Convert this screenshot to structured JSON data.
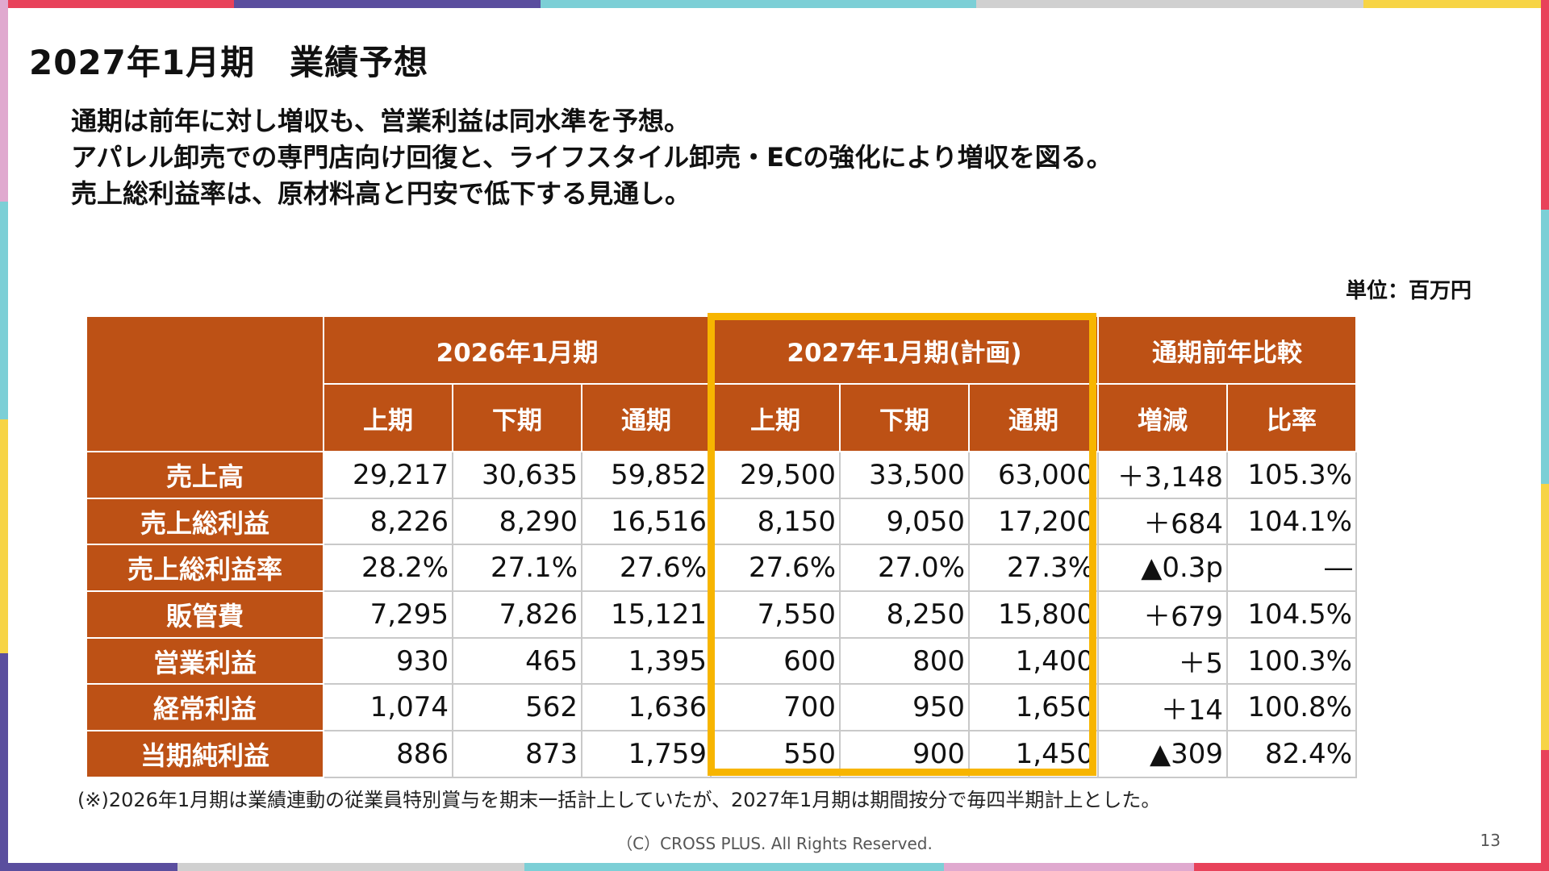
{
  "slide": {
    "title": "2027年1月期　業績予想",
    "summary": [
      "通期は前年に対し増収も、営業利益は同水準を予想。",
      "アパレル卸売での専門店向け回復と、ライフスタイル卸売・ECの強化により増収を図る。",
      "売上総利益率は、原材料高と円安で低下する見通し。"
    ],
    "unit": "単位：百万円",
    "note": "(※)2026年1月期は業績連動の従業員特別賞与を期末一括計上していたが、2027年1月期は期間按分で毎四半期計上とした。",
    "copyright": "（C）CROSS PLUS. All Rights Reserved.",
    "page_number": "13"
  },
  "colors": {
    "header_bg": "#bd5115",
    "highlight_border": "#f7b500",
    "grid": "#c9c9c9",
    "frame": [
      "#e8425a",
      "#5a4e9e",
      "#7ccfd6",
      "#f7d445",
      "#e0a9cf",
      "#d0d0d0"
    ]
  },
  "table": {
    "groups": [
      "2026年1月期",
      "2027年1月期(計画)",
      "通期前年比較"
    ],
    "subheaders": [
      "上期",
      "下期",
      "通期",
      "上期",
      "下期",
      "通期",
      "増減",
      "比率"
    ],
    "rows": [
      {
        "label": "売上高",
        "values": [
          "29,217",
          "30,635",
          "59,852",
          "29,500",
          "33,500",
          "63,000",
          "＋3,148",
          "105.3%"
        ]
      },
      {
        "label": "売上総利益",
        "values": [
          "8,226",
          "8,290",
          "16,516",
          "8,150",
          "9,050",
          "17,200",
          "＋684",
          "104.1%"
        ]
      },
      {
        "label": "売上総利益率",
        "values": [
          "28.2%",
          "27.1%",
          "27.6%",
          "27.6%",
          "27.0%",
          "27.3%",
          "▲0.3p",
          "―"
        ]
      },
      {
        "label": "販管費",
        "values": [
          "7,295",
          "7,826",
          "15,121",
          "7,550",
          "8,250",
          "15,800",
          "＋679",
          "104.5%"
        ]
      },
      {
        "label": "営業利益",
        "values": [
          "930",
          "465",
          "1,395",
          "600",
          "800",
          "1,400",
          "＋5",
          "100.3%"
        ]
      },
      {
        "label": "経常利益",
        "values": [
          "1,074",
          "562",
          "1,636",
          "700",
          "950",
          "1,650",
          "＋14",
          "100.8%"
        ]
      },
      {
        "label": "当期純利益",
        "values": [
          "886",
          "873",
          "1,759",
          "550",
          "900",
          "1,450",
          "▲309",
          "82.4%"
        ]
      }
    ]
  }
}
